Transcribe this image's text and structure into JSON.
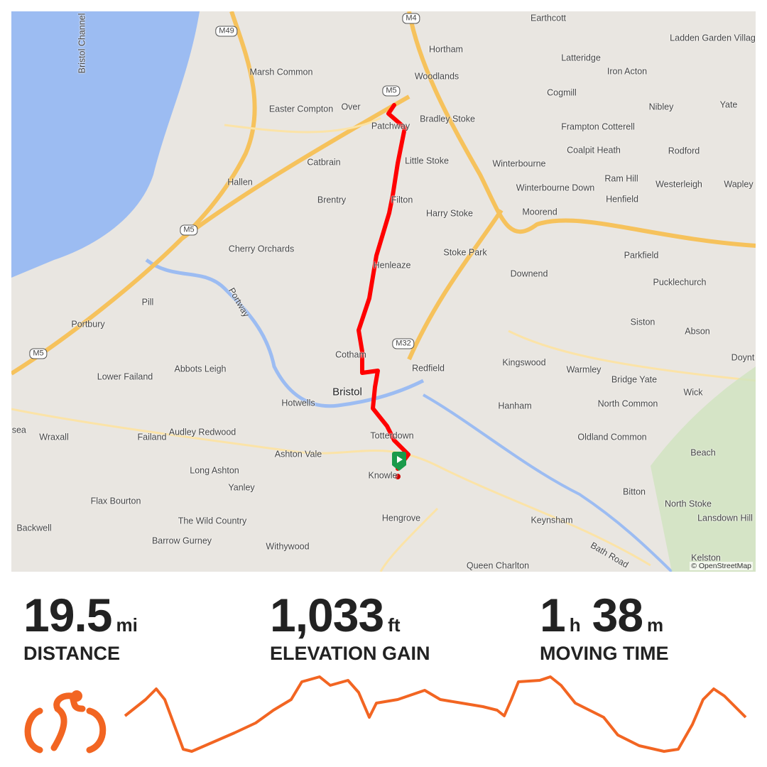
{
  "map": {
    "attribution": "© OpenStreetMap",
    "labels": [
      "Bristol Channel",
      "Earthcott",
      "Ladden Garden Village",
      "Hortham",
      "Latteridge",
      "Marsh Common",
      "Woodlands",
      "Iron Acton",
      "Cogmill",
      "Nibley",
      "Yate",
      "Easter Compton",
      "Over",
      "Patchway",
      "Bradley Stoke",
      "Frampton Cotterell",
      "Coalpit Heath",
      "Rodford",
      "Catbrain",
      "Little Stoke",
      "Winterbourne",
      "Ram Hill",
      "Hallen",
      "Brentry",
      "Filton",
      "Winterbourne Down",
      "Henfield",
      "Westerleigh",
      "Wapley",
      "Harry Stoke",
      "Moorend",
      "Cherry Orchards",
      "Stoke Park",
      "Parkfield",
      "Henleaze",
      "Downend",
      "Pucklechurch",
      "Pill",
      "Portbury",
      "Siston",
      "Abson",
      "Cotham",
      "Kingswood",
      "Warmley",
      "Doynt",
      "Lower Failand",
      "Abbots Leigh",
      "Redfield",
      "Bridge Yate",
      "Wick",
      "Bristol",
      "Hotwells",
      "Hanham",
      "North Common",
      "Wraxall",
      "Failand",
      "Audley Redwood",
      "Totterdown",
      "Oldland Common",
      "Beach",
      "Ashton Vale",
      "Long Ashton",
      "Knowle",
      "Yanley",
      "Bitton",
      "North Stoke",
      "Lansdown Hill",
      "Flax Bourton",
      "The Wild Country",
      "Hengrove",
      "Keynsham",
      "Backwell",
      "Barrow Gurney",
      "Withywood",
      "Queen Charlton",
      "Kelston",
      "Bath Road",
      "Portway",
      "Nailsea"
    ],
    "road_shields": [
      "M4",
      "M49",
      "M5",
      "M5",
      "M5",
      "M32"
    ],
    "colors": {
      "route": "#ff0000",
      "water": "#9cbcf2",
      "land": "#e9e6e1",
      "motorway": "#f6c25c",
      "start_marker": "#1a9a4a"
    }
  },
  "stats": {
    "distance": {
      "value": "19.5",
      "unit": "mi",
      "label": "DISTANCE"
    },
    "elevation": {
      "value": "1,033",
      "unit": "ft",
      "label": "ELEVATION GAIN"
    },
    "moving_time": {
      "hours": "1",
      "hours_unit": "h",
      "minutes": "38",
      "minutes_unit": "m",
      "label": "MOVING TIME"
    }
  },
  "activity_icon": "cycling-icon",
  "accent_color": "#f26522"
}
